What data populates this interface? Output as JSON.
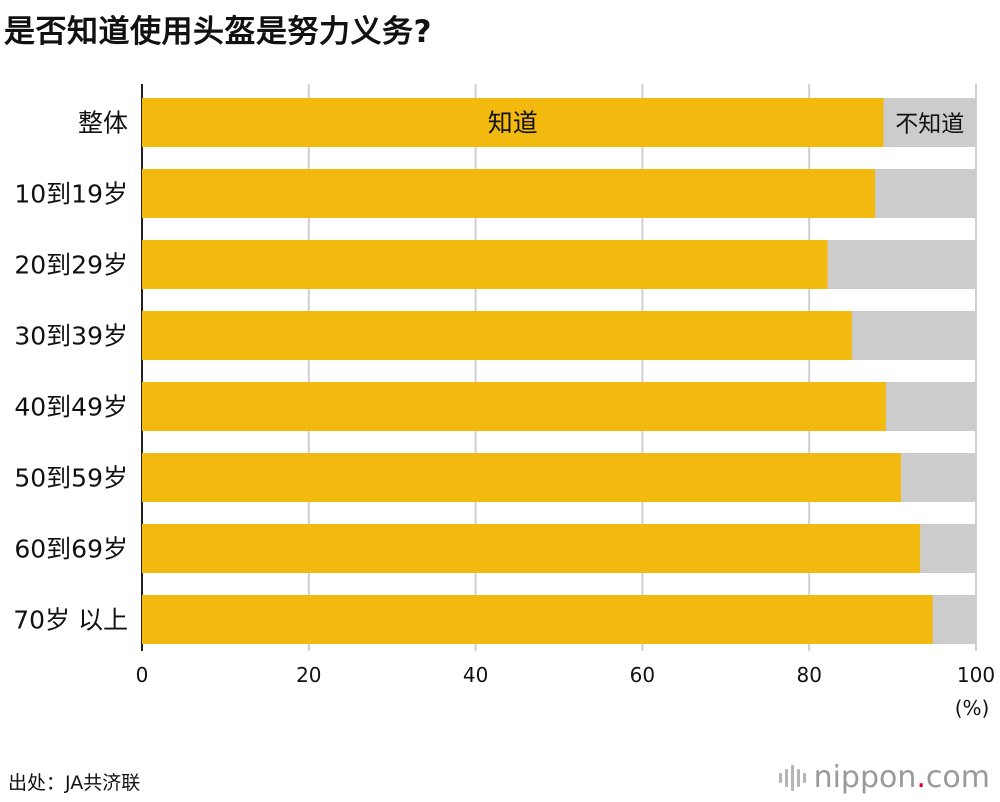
{
  "title": "是否知道使用头盔是努力义务?",
  "source": "出处：JA共济联",
  "logo": {
    "name": "nippon",
    "dot": ".",
    "suffix": "com",
    "icon": "nippon-logo-icon"
  },
  "colors": {
    "known": "#f2b90f",
    "unknown": "#cccccc",
    "grid": "#cfcfcf",
    "axis": "#222222"
  },
  "chart_data": {
    "type": "bar",
    "orientation": "horizontal",
    "stacked": true,
    "categories": [
      "整体",
      "10到19岁",
      "20到29岁",
      "30到39岁",
      "40到49岁",
      "50到59岁",
      "60到69岁",
      "70岁 以上"
    ],
    "series": [
      {
        "name": "知道",
        "values": [
          88.9,
          87.9,
          82.2,
          85.1,
          89.2,
          91.0,
          93.3,
          94.8
        ]
      },
      {
        "name": "不知道",
        "values": [
          11.1,
          12.1,
          17.8,
          14.9,
          10.8,
          9.0,
          6.7,
          5.2
        ]
      }
    ],
    "xlim": [
      0,
      100
    ],
    "xticks": [
      0,
      20,
      40,
      60,
      80,
      100
    ],
    "xunit": "(%)",
    "grid": true
  }
}
